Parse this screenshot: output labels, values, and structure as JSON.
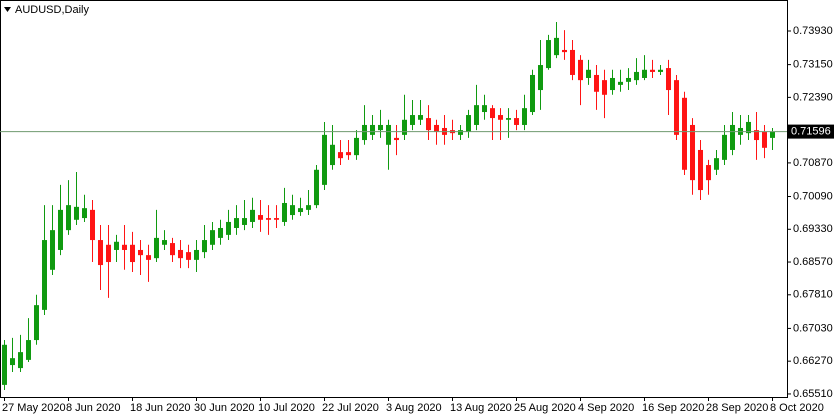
{
  "chart_data": {
    "type": "candlestick",
    "title": "AUDUSD,Daily",
    "categories": [
      "27 May 2020",
      null,
      null,
      null,
      null,
      null,
      null,
      null,
      "8 Jun 2020",
      null,
      null,
      null,
      null,
      null,
      null,
      null,
      "18 Jun 2020",
      null,
      null,
      null,
      null,
      null,
      null,
      null,
      "30 Jun 2020",
      null,
      null,
      null,
      null,
      null,
      null,
      null,
      "10 Jul 2020",
      null,
      null,
      null,
      null,
      null,
      null,
      null,
      "22 Jul 2020",
      null,
      null,
      null,
      null,
      null,
      null,
      null,
      "3 Aug 2020",
      null,
      null,
      null,
      null,
      null,
      null,
      null,
      "13 Aug 2020",
      null,
      null,
      null,
      null,
      null,
      null,
      null,
      "25 Aug 2020",
      null,
      null,
      null,
      null,
      null,
      null,
      null,
      "4 Sep 2020",
      null,
      null,
      null,
      null,
      null,
      null,
      null,
      "16 Sep 2020",
      null,
      null,
      null,
      null,
      null,
      null,
      null,
      "28 Sep 2020",
      null,
      null,
      null,
      null,
      null,
      null,
      null,
      "8 Oct 2020"
    ],
    "open": [
      0.6572,
      0.6618,
      0.6611,
      0.663,
      0.6676,
      0.6746,
      0.6839,
      0.6885,
      0.6931,
      0.6955,
      0.6959,
      0.6978,
      0.6908,
      0.6897,
      0.6885,
      0.6897,
      0.6897,
      0.6885,
      0.6873,
      0.6866,
      0.6897,
      0.6901,
      0.6885,
      0.688,
      0.6862,
      0.688,
      0.6897,
      0.6913,
      0.692,
      0.6936,
      0.6943,
      0.695,
      0.6966,
      0.6959,
      0.6959,
      0.695,
      0.6966,
      0.6973,
      0.6978,
      0.6989,
      0.7036,
      0.7082,
      0.7112,
      0.7112,
      0.7105,
      0.714,
      0.7152,
      0.7163,
      0.7129,
      0.7145,
      0.7152,
      0.7175,
      0.7187,
      0.7191,
      0.7175,
      0.7168,
      0.7163,
      0.7152,
      0.7159,
      0.7175,
      0.7205,
      0.7214,
      0.7198,
      0.7187,
      0.7191,
      0.7175,
      0.7205,
      0.7256,
      0.7307,
      0.7337,
      0.7349,
      0.7349,
      0.7326,
      0.7284,
      0.7291,
      0.7279,
      0.7256,
      0.7268,
      0.7275,
      0.7279,
      0.7284,
      0.7303,
      0.7298,
      0.7307,
      0.7279,
      0.7238,
      0.7175,
      0.7117,
      0.7082,
      0.7071,
      0.7094,
      0.7117,
      0.7152,
      0.7156,
      0.7163,
      0.7159,
      0.7145
    ],
    "high": [
      0.6676,
      0.6681,
      0.6688,
      0.6727,
      0.6781,
      0.6989,
      0.6989,
      0.7036,
      0.7047,
      0.7066,
      0.7013,
      0.7001,
      0.6943,
      0.6943,
      0.692,
      0.6943,
      0.6927,
      0.6908,
      0.6897,
      0.6978,
      0.6931,
      0.6913,
      0.6908,
      0.6897,
      0.6908,
      0.6943,
      0.695,
      0.6955,
      0.6978,
      0.6989,
      0.7001,
      0.7006,
      0.7001,
      0.6989,
      0.6989,
      0.7029,
      0.7013,
      0.7006,
      0.7024,
      0.7082,
      0.7182,
      0.7175,
      0.714,
      0.714,
      0.7163,
      0.7221,
      0.7198,
      0.721,
      0.7187,
      0.7175,
      0.7245,
      0.7233,
      0.7233,
      0.7221,
      0.7187,
      0.7198,
      0.7187,
      0.7175,
      0.721,
      0.7268,
      0.7245,
      0.7221,
      0.7214,
      0.7214,
      0.721,
      0.7245,
      0.7303,
      0.7372,
      0.7384,
      0.7414,
      0.7395,
      0.7372,
      0.7337,
      0.7326,
      0.7314,
      0.7303,
      0.7303,
      0.7303,
      0.7307,
      0.733,
      0.7337,
      0.7326,
      0.7314,
      0.7326,
      0.7291,
      0.7252,
      0.7191,
      0.714,
      0.7094,
      0.7117,
      0.7175,
      0.7205,
      0.7198,
      0.7198,
      0.7205,
      0.7175,
      0.7168
    ],
    "low": [
      0.656,
      0.6602,
      0.6602,
      0.6625,
      0.6665,
      0.6734,
      0.6827,
      0.6873,
      0.692,
      0.6943,
      0.695,
      0.6857,
      0.6792,
      0.6774,
      0.6857,
      0.6839,
      0.6834,
      0.6827,
      0.6811,
      0.6857,
      0.6885,
      0.6857,
      0.6843,
      0.6843,
      0.6834,
      0.6866,
      0.6885,
      0.6897,
      0.6908,
      0.692,
      0.6931,
      0.6936,
      0.6927,
      0.692,
      0.6936,
      0.6941,
      0.6955,
      0.6964,
      0.6966,
      0.6982,
      0.7024,
      0.7071,
      0.7082,
      0.7094,
      0.7094,
      0.7129,
      0.714,
      0.7145,
      0.7071,
      0.7105,
      0.714,
      0.7163,
      0.7175,
      0.714,
      0.7129,
      0.7129,
      0.714,
      0.714,
      0.7145,
      0.7163,
      0.7187,
      0.714,
      0.714,
      0.7145,
      0.7163,
      0.7163,
      0.7198,
      0.721,
      0.7303,
      0.733,
      0.7326,
      0.7279,
      0.7221,
      0.7268,
      0.721,
      0.7191,
      0.7245,
      0.7252,
      0.7256,
      0.7268,
      0.7279,
      0.7284,
      0.7291,
      0.7198,
      0.714,
      0.7059,
      0.7013,
      0.7001,
      0.7013,
      0.7059,
      0.7082,
      0.7105,
      0.7129,
      0.714,
      0.7094,
      0.7098,
      0.7117
    ],
    "close": [
      0.6665,
      0.6634,
      0.6648,
      0.6676,
      0.6757,
      0.6908,
      0.6931,
      0.6978,
      0.6989,
      0.6985,
      0.6982,
      0.6908,
      0.685,
      0.6857,
      0.6904,
      0.6885,
      0.6857,
      0.6873,
      0.6862,
      0.6913,
      0.6908,
      0.6873,
      0.6866,
      0.6862,
      0.6885,
      0.6908,
      0.6931,
      0.6936,
      0.695,
      0.6959,
      0.6959,
      0.6978,
      0.6955,
      0.6955,
      0.6955,
      0.6994,
      0.6989,
      0.6982,
      0.6989,
      0.7071,
      0.7152,
      0.7129,
      0.7098,
      0.7105,
      0.7145,
      0.7175,
      0.7175,
      0.7175,
      0.7175,
      0.714,
      0.7187,
      0.7198,
      0.7198,
      0.7163,
      0.7159,
      0.7152,
      0.7156,
      0.7163,
      0.7198,
      0.7221,
      0.7221,
      0.7191,
      0.7187,
      0.7191,
      0.7175,
      0.7214,
      0.7291,
      0.7314,
      0.7372,
      0.7377,
      0.7344,
      0.7291,
      0.7279,
      0.7303,
      0.7252,
      0.7245,
      0.7284,
      0.7275,
      0.7284,
      0.7298,
      0.7303,
      0.7298,
      0.7303,
      0.7256,
      0.7152,
      0.7071,
      0.7047,
      0.7024,
      0.7047,
      0.7098,
      0.7152,
      0.7175,
      0.7168,
      0.7182,
      0.714,
      0.7122,
      0.71596
    ],
    "ylim": [
      0.65439,
      0.74649
    ],
    "yticks": [
      {
        "value": 0.7393,
        "label": "0.73930"
      },
      {
        "value": 0.7315,
        "label": "0.73150"
      },
      {
        "value": 0.7239,
        "label": "0.72390"
      },
      {
        "value": 0.7087,
        "label": "0.70870"
      },
      {
        "value": 0.7009,
        "label": "0.70090"
      },
      {
        "value": 0.6933,
        "label": "0.69330"
      },
      {
        "value": 0.6857,
        "label": "0.68570"
      },
      {
        "value": 0.6781,
        "label": "0.67810"
      },
      {
        "value": 0.6703,
        "label": "0.67030"
      },
      {
        "value": 0.6627,
        "label": "0.66270"
      },
      {
        "value": 0.6551,
        "label": "0.65510"
      }
    ],
    "up_color": "#109a10",
    "down_color": "#ff1414",
    "price_line_color": "#6f9a6f"
  }
}
